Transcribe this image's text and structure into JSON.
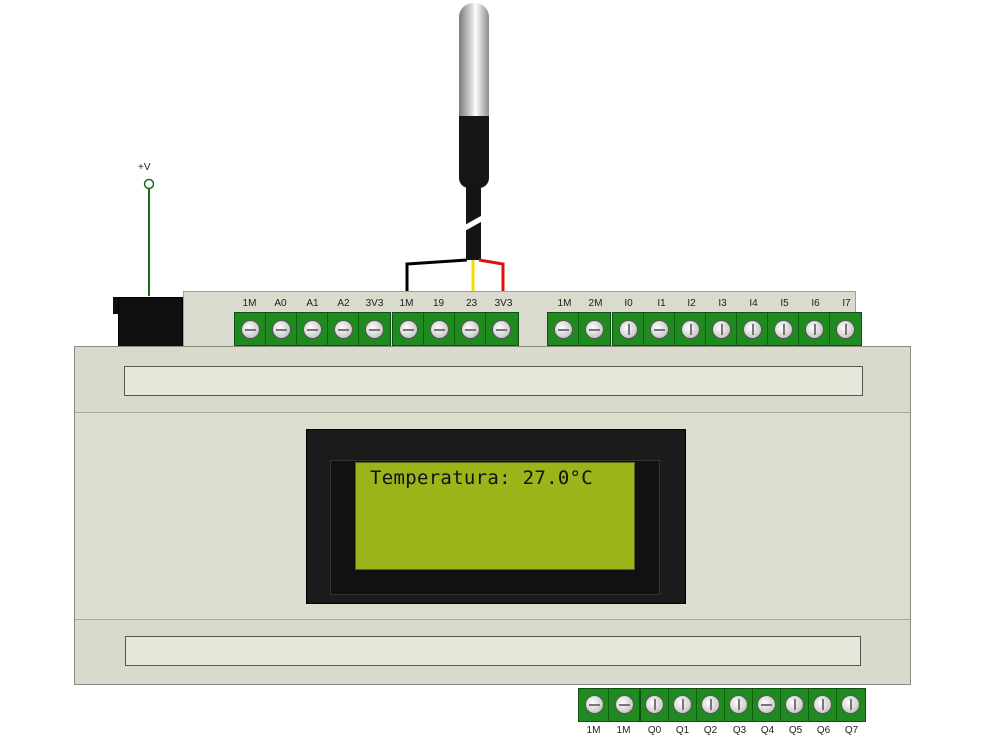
{
  "power": {
    "label": "+V"
  },
  "lcd": {
    "text": "Temperatura: 27.0°C"
  },
  "terminals": {
    "top_analog": [
      "1M",
      "A0",
      "A1",
      "A2",
      "3V3"
    ],
    "top_sensor": [
      "1M",
      "19",
      "23",
      "3V3"
    ],
    "top_com": [
      "1M",
      "2M"
    ],
    "top_inputs": [
      "I0",
      "I1",
      "I2",
      "I3",
      "I4",
      "I5",
      "I6",
      "I7"
    ],
    "bottom_com": [
      "1M",
      "1M"
    ],
    "bottom_outputs": [
      "Q0",
      "Q1",
      "Q2",
      "Q3",
      "Q4",
      "Q5",
      "Q6",
      "Q7"
    ]
  },
  "wire_colors": {
    "black": "#000000",
    "yellow": "#f2e000",
    "red": "#e01010",
    "terminal_green": "#1f8a1f",
    "lcd_green": "#9cb41a"
  }
}
